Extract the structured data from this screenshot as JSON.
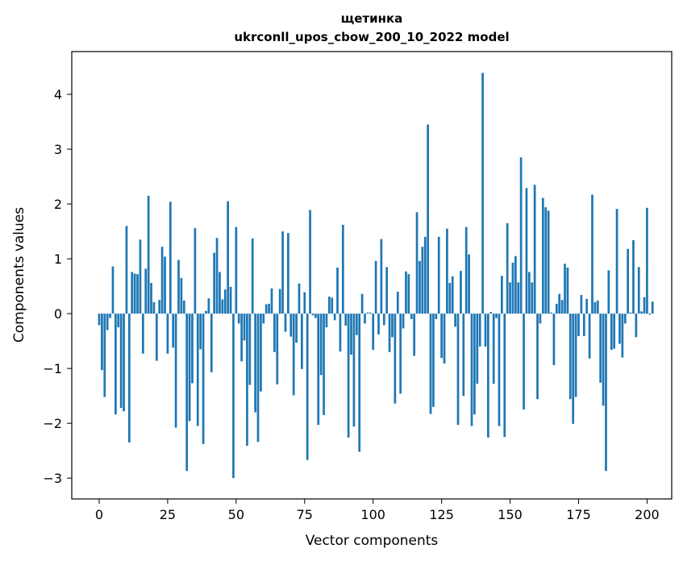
{
  "chart_data": {
    "type": "bar",
    "title": "щетинка",
    "subtitle": "ukrconll_upos_cbow_200_10_2022 model",
    "xlabel": "Vector components",
    "ylabel": "Components values",
    "xlim": [
      -10,
      209
    ],
    "ylim": [
      -3.38,
      4.78
    ],
    "xticks": [
      0,
      25,
      50,
      75,
      100,
      125,
      150,
      175,
      200
    ],
    "yticks": [
      -3,
      -2,
      -1,
      0,
      1,
      2,
      3,
      4
    ],
    "grid": false,
    "bar_color": "#1f77b4",
    "values": [
      -0.21,
      -1.03,
      -1.52,
      -0.3,
      -0.08,
      0.86,
      -1.84,
      -0.25,
      -1.72,
      -1.78,
      1.6,
      -2.35,
      0.76,
      0.73,
      0.72,
      1.35,
      -0.73,
      0.82,
      2.15,
      0.56,
      0.21,
      -0.86,
      0.25,
      1.22,
      1.04,
      -0.73,
      2.04,
      -0.62,
      -2.08,
      0.98,
      0.65,
      0.24,
      -2.87,
      -1.96,
      -1.27,
      1.56,
      -2.05,
      -0.65,
      -2.38,
      0.05,
      0.28,
      -1.07,
      1.11,
      1.38,
      0.76,
      0.26,
      0.44,
      2.05,
      0.49,
      -3.0,
      1.58,
      -0.18,
      -0.87,
      -0.49,
      -2.41,
      -1.3,
      1.37,
      -1.8,
      -2.34,
      -1.42,
      -0.18,
      0.17,
      0.18,
      0.46,
      -0.7,
      -1.29,
      0.45,
      1.5,
      -0.33,
      1.47,
      -0.42,
      -1.49,
      -0.53,
      0.55,
      -1.01,
      0.39,
      -2.67,
      1.89,
      -0.03,
      -0.08,
      -2.03,
      -1.12,
      -1.85,
      -0.25,
      0.31,
      0.29,
      -0.12,
      0.84,
      -0.69,
      1.62,
      -0.22,
      -2.26,
      -0.75,
      -2.06,
      -0.39,
      -2.52,
      0.36,
      -0.18,
      0.02,
      0.02,
      -0.66,
      0.96,
      -0.38,
      1.36,
      -0.21,
      0.85,
      -0.7,
      -0.43,
      -1.64,
      0.4,
      -1.46,
      -0.27,
      0.77,
      0.72,
      -0.1,
      -0.77,
      1.85,
      0.96,
      1.22,
      1.4,
      3.45,
      -1.83,
      -1.7,
      -0.1,
      1.4,
      -0.81,
      -0.91,
      1.55,
      0.56,
      0.68,
      -0.24,
      -2.03,
      0.78,
      -1.5,
      1.58,
      1.08,
      -2.05,
      -1.84,
      -1.28,
      -0.6,
      4.39,
      -0.6,
      -2.26,
      0.03,
      -1.28,
      -0.08,
      -2.05,
      0.69,
      -2.25,
      1.65,
      0.57,
      0.93,
      1.05,
      0.57,
      2.85,
      -1.75,
      2.29,
      0.76,
      0.57,
      2.35,
      -1.56,
      -0.18,
      2.11,
      1.94,
      1.88,
      0.02,
      -0.94,
      0.18,
      0.36,
      0.25,
      0.91,
      0.84,
      -1.56,
      -2.01,
      -1.52,
      -0.41,
      0.34,
      -0.41,
      0.27,
      -0.82,
      2.17,
      0.21,
      0.24,
      -1.26,
      -1.68,
      -2.87,
      0.79,
      -0.66,
      -0.64,
      1.91,
      -0.55,
      -0.8,
      -0.18,
      1.18,
      0.02,
      1.34,
      -0.43,
      0.85,
      0.04,
      0.3,
      1.93,
      -0.02,
      0.22
    ]
  }
}
